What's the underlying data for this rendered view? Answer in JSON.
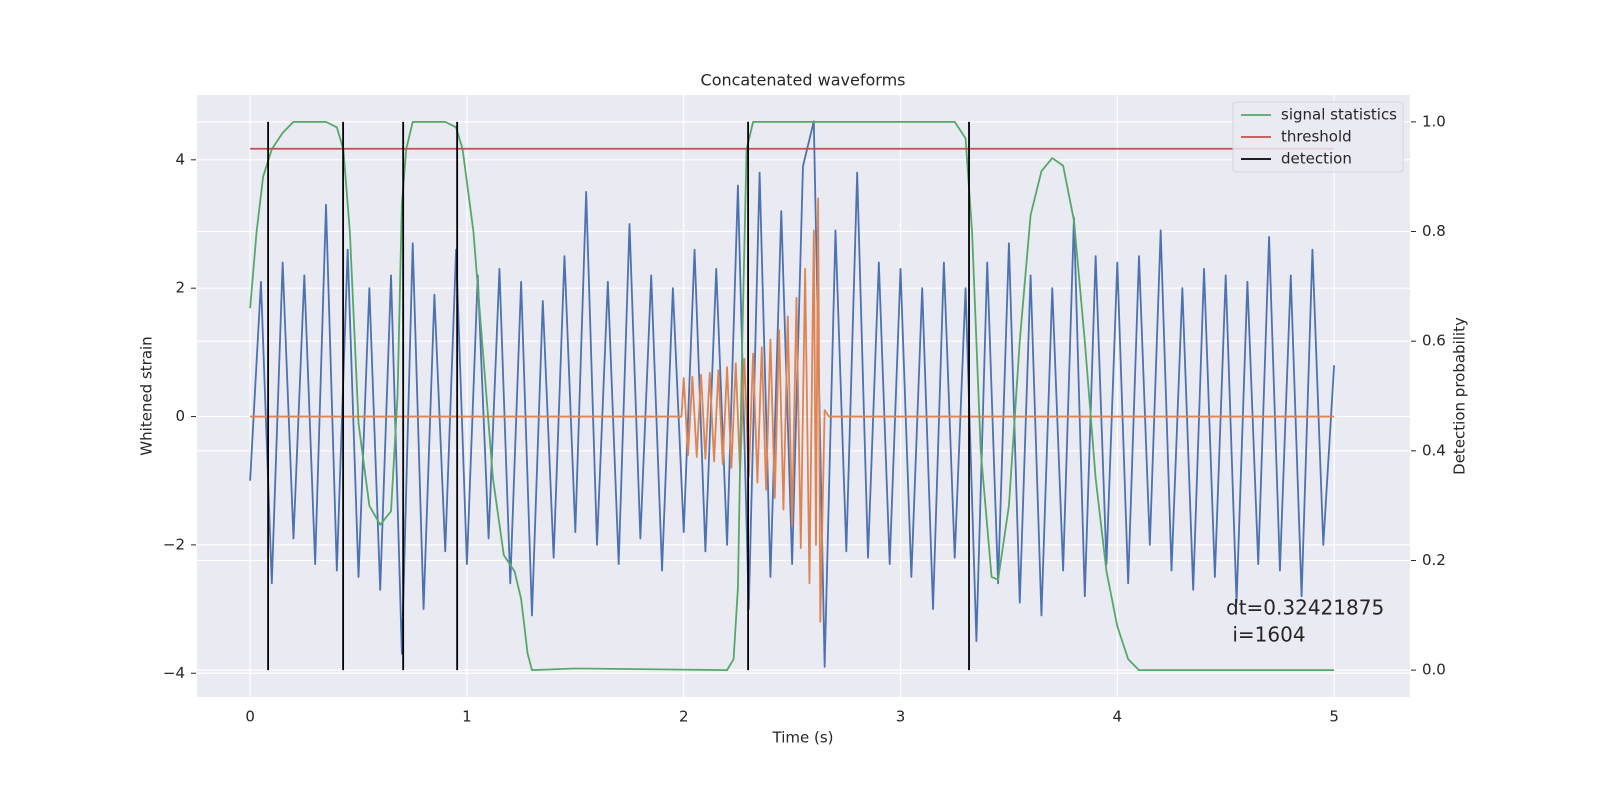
{
  "chart_data": {
    "type": "line",
    "title": "Concatenated waveforms",
    "xlabel": "Time (s)",
    "ylabel": "Whitened strain",
    "y2label": "Detection probability",
    "xlim": [
      -0.245,
      5.35
    ],
    "ylim": [
      -4.37,
      5.01
    ],
    "y2lim": [
      -0.049,
      1.049
    ],
    "xticks": [
      0,
      1,
      2,
      3,
      4,
      5
    ],
    "yticks": [
      {
        "value": -4,
        "label": "−4"
      },
      {
        "value": -2,
        "label": "−2"
      },
      0,
      2,
      4
    ],
    "y2ticks": [
      {
        "value": 0,
        "label": "0.0"
      },
      0.2,
      0.4,
      0.6,
      0.8,
      {
        "value": 1,
        "label": "1.0"
      }
    ],
    "grid": true,
    "legend": "upper right",
    "series": [
      {
        "color": "#4c72b0",
        "axis": "y",
        "x": [
          0,
          0.05,
          0.1,
          0.15,
          0.2,
          0.25,
          0.3,
          0.35,
          0.4,
          0.45,
          0.5,
          0.55,
          0.6,
          0.65,
          0.7,
          0.75,
          0.8,
          0.85,
          0.9,
          0.95,
          1,
          1.05,
          1.1,
          1.15,
          1.2,
          1.25,
          1.3,
          1.35,
          1.4,
          1.45,
          1.5,
          1.55,
          1.6,
          1.65,
          1.7,
          1.75,
          1.8,
          1.85,
          1.9,
          1.95,
          2,
          2.05,
          2.1,
          2.15,
          2.2,
          2.25,
          2.3,
          2.35,
          2.4,
          2.45,
          2.5,
          2.55,
          2.6,
          2.65,
          2.7,
          2.75,
          2.8,
          2.85,
          2.9,
          2.95,
          3,
          3.05,
          3.1,
          3.15,
          3.2,
          3.25,
          3.3,
          3.35,
          3.4,
          3.45,
          3.5,
          3.55,
          3.6,
          3.65,
          3.7,
          3.75,
          3.8,
          3.85,
          3.9,
          3.95,
          4,
          4.05,
          4.1,
          4.15,
          4.2,
          4.25,
          4.3,
          4.35,
          4.4,
          4.45,
          4.5,
          4.55,
          4.6,
          4.65,
          4.7,
          4.75,
          4.8,
          4.85,
          4.9,
          4.95,
          5
        ],
        "values": [
          -1.0,
          2.1,
          -2.6,
          2.4,
          -1.9,
          2.2,
          -2.3,
          3.3,
          -2.4,
          2.6,
          -2.5,
          2.0,
          -2.7,
          2.2,
          -3.7,
          2.7,
          -3.0,
          1.9,
          -2.1,
          2.6,
          -2.3,
          2.2,
          -1.9,
          2.3,
          -2.6,
          2.1,
          -3.1,
          1.8,
          -2.2,
          2.5,
          -1.8,
          3.5,
          -2.0,
          2.1,
          -2.3,
          3.0,
          -1.9,
          2.2,
          -2.4,
          2.0,
          -1.8,
          2.6,
          -2.1,
          2.3,
          -2.0,
          3.6,
          -3.0,
          3.8,
          -2.5,
          3.2,
          -2.3,
          3.9,
          4.6,
          -3.9,
          2.9,
          -2.1,
          3.8,
          -2.2,
          2.4,
          -2.3,
          2.3,
          -2.5,
          2.0,
          -3.0,
          2.4,
          -2.2,
          2.0,
          -3.5,
          2.4,
          -2.6,
          2.7,
          -2.9,
          2.2,
          -3.1,
          2.0,
          -2.4,
          3.1,
          -2.8,
          2.5,
          -2.3,
          2.4,
          -2.6,
          2.5,
          -2.0,
          2.9,
          -2.4,
          2.0,
          -2.7,
          2.3,
          -2.5,
          2.2,
          -2.9,
          2.1,
          -2.3,
          2.8,
          -2.4,
          2.2,
          -2.8,
          2.6,
          -2.0,
          0.8
        ]
      },
      {
        "color": "#dd8452",
        "axis": "y",
        "x": [
          0,
          1.99,
          2.0,
          2.02,
          2.04,
          2.06,
          2.08,
          2.1,
          2.12,
          2.14,
          2.16,
          2.18,
          2.2,
          2.22,
          2.24,
          2.26,
          2.28,
          2.3,
          2.32,
          2.34,
          2.36,
          2.38,
          2.4,
          2.42,
          2.44,
          2.46,
          2.48,
          2.5,
          2.52,
          2.54,
          2.56,
          2.58,
          2.6,
          2.61,
          2.62,
          2.63,
          2.65,
          2.67,
          5
        ],
        "values": [
          0,
          0,
          0.6,
          -0.6,
          0.62,
          -0.63,
          0.65,
          -0.66,
          0.68,
          -0.7,
          0.72,
          -0.74,
          0.77,
          -0.8,
          0.83,
          -0.86,
          0.9,
          -0.94,
          0.98,
          -1.03,
          1.08,
          -1.14,
          1.2,
          -1.27,
          1.35,
          -1.45,
          1.56,
          -1.7,
          1.85,
          -2.05,
          2.3,
          -2.6,
          2.9,
          -2.0,
          3.4,
          -3.2,
          0.1,
          0,
          0
        ]
      },
      {
        "name": "signal statistics",
        "color": "#55a868",
        "axis": "y2",
        "x": [
          0,
          0.03,
          0.06,
          0.1,
          0.15,
          0.2,
          0.35,
          0.4,
          0.43,
          0.46,
          0.5,
          0.55,
          0.6,
          0.65,
          0.68,
          0.7,
          0.72,
          0.75,
          0.9,
          0.95,
          0.98,
          1.03,
          1.08,
          1.12,
          1.17,
          1.22,
          1.25,
          1.28,
          1.3,
          1.5,
          2.2,
          2.23,
          2.25,
          2.27,
          2.29,
          2.32,
          3.25,
          3.3,
          3.33,
          3.37,
          3.42,
          3.45,
          3.5,
          3.55,
          3.6,
          3.65,
          3.7,
          3.75,
          3.8,
          3.85,
          3.9,
          3.95,
          4.0,
          4.05,
          4.1,
          5.0
        ],
        "values": [
          0.66,
          0.8,
          0.9,
          0.95,
          0.98,
          1.0,
          1.0,
          0.99,
          0.95,
          0.8,
          0.45,
          0.3,
          0.265,
          0.29,
          0.5,
          0.85,
          0.95,
          1.0,
          1.0,
          0.99,
          0.95,
          0.8,
          0.55,
          0.35,
          0.21,
          0.18,
          0.13,
          0.03,
          0.0,
          0.003,
          0.0,
          0.02,
          0.15,
          0.6,
          0.95,
          1.0,
          1.0,
          0.97,
          0.8,
          0.4,
          0.17,
          0.165,
          0.3,
          0.6,
          0.83,
          0.91,
          0.934,
          0.92,
          0.82,
          0.6,
          0.35,
          0.18,
          0.08,
          0.02,
          0.0,
          0.0
        ]
      },
      {
        "name": "threshold",
        "color": "#c44e52",
        "axis": "y2",
        "x": [
          0,
          5
        ],
        "values": [
          0.951,
          0.951
        ]
      }
    ],
    "vlines": {
      "name": "detection",
      "color": "#000000",
      "axis": "y2",
      "ymin": 0,
      "ymax": 1,
      "x": [
        0.083,
        0.429,
        0.706,
        0.955,
        2.297,
        3.316
      ]
    },
    "annotation": [
      "dt=0.32421875",
      " i=1604"
    ]
  }
}
